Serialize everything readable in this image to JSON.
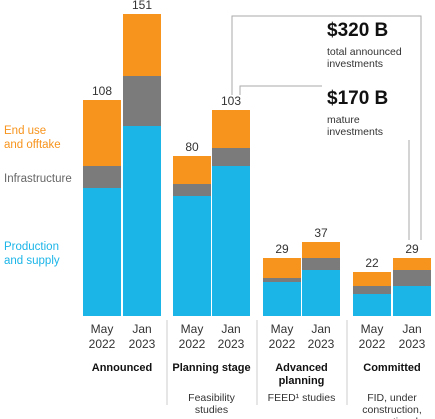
{
  "chart_data": {
    "type": "stacked-bar",
    "categories": [
      "May 2022",
      "Jan 2023",
      "May 2022",
      "Jan 2023",
      "May 2022",
      "Jan 2023",
      "May 2022",
      "Jan 2023"
    ],
    "groups": [
      {
        "name": "Announced"
      },
      {
        "name": "Planning stage",
        "note": "Feasibility studies"
      },
      {
        "name": "Advanced planning",
        "note": "FEED¹ studies"
      },
      {
        "name": "Committed",
        "note": "FID, under construction, operational"
      }
    ],
    "series": [
      {
        "name": "Production and supply",
        "color": "#1bb5e8",
        "values": [
          64,
          95,
          60,
          75,
          17,
          23,
          11,
          15
        ]
      },
      {
        "name": "Infrastructure",
        "color": "#7b7b7b",
        "values": [
          11,
          25,
          6,
          9,
          2,
          6,
          4,
          8
        ]
      },
      {
        "name": "End use and offtake",
        "color": "#f7941d",
        "values": [
          33,
          31,
          14,
          19,
          10,
          8,
          7,
          6
        ]
      }
    ],
    "totals": [
      108,
      151,
      80,
      103,
      29,
      37,
      22,
      29
    ],
    "annotations": [
      {
        "value": "$320 B",
        "text": "total announced investments"
      },
      {
        "value": "$170 B",
        "text": "mature investments"
      }
    ]
  }
}
